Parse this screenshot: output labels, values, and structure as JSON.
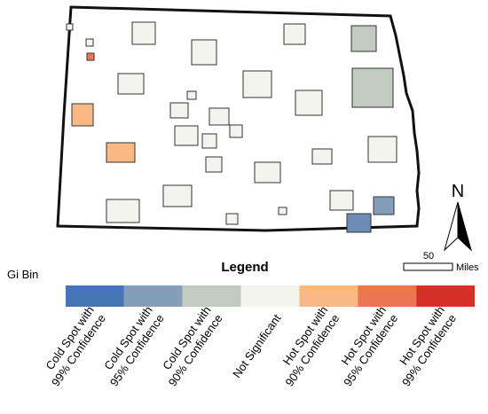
{
  "legend": {
    "title": "Legend",
    "field": "Gi Bin",
    "items": [
      {
        "label": [
          "Cold Spot with",
          "99% Confidence"
        ],
        "color": "#4575b5"
      },
      {
        "label": [
          "Cold Spot with",
          "95% Confidence"
        ],
        "color": "#849eba"
      },
      {
        "label": [
          "Cold Spot with",
          "90% Confidence"
        ],
        "color": "#c0ccbe"
      },
      {
        "label": [
          "Not Significant"
        ],
        "color": "#f4f4ee"
      },
      {
        "label": [
          "Hot Spot with",
          "90% Confidence"
        ],
        "color": "#fab984"
      },
      {
        "label": [
          "Hot Spot with",
          "95% Confidence"
        ],
        "color": "#ed7551"
      },
      {
        "label": [
          "Hot Spot with",
          "99% Confidence"
        ],
        "color": "#d62f27"
      }
    ]
  },
  "north": "N",
  "scale": {
    "value": 50,
    "unit": "Miles"
  }
}
